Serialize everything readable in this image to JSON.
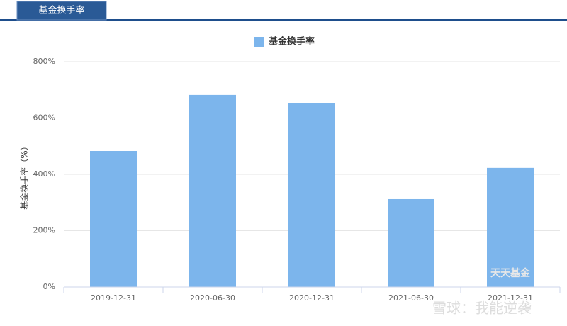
{
  "tab": "基金换手率",
  "chart_data": {
    "type": "bar",
    "legend": "基金换手率",
    "y_label": "基金换手率（%）",
    "categories": [
      "2019-12-31",
      "2020-06-30",
      "2020-12-31",
      "2021-06-30",
      "2021-12-31"
    ],
    "series": [
      {
        "name": "基金换手率",
        "color": "#7cb5ec",
        "values": [
          483,
          682,
          654,
          312,
          423
        ]
      }
    ],
    "ylim": [
      0,
      800
    ],
    "yticks": [
      {
        "value": 0,
        "label": "0%"
      },
      {
        "value": 200,
        "label": "200%"
      },
      {
        "value": 400,
        "label": "400%"
      },
      {
        "value": 600,
        "label": "600%"
      },
      {
        "value": 800,
        "label": "800%"
      }
    ],
    "grid": true
  },
  "watermarks": [
    "天天基金",
    "雪球：我能逆袭"
  ]
}
